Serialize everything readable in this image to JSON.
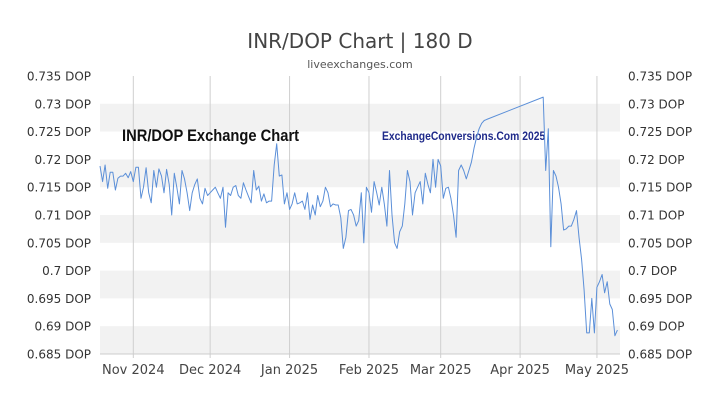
{
  "chart_data": {
    "type": "line",
    "title": "INR/DOP Chart | 180 D",
    "subtitle": "liveexchanges.com",
    "watermark_left": "INR/DOP Exchange Chart",
    "watermark_right": "ExchangeConversions.Com 2025",
    "y_unit": "DOP",
    "ylim": [
      0.685,
      0.735
    ],
    "y_ticks": [
      "0.735 DOP",
      "0.73 DOP",
      "0.725 DOP",
      "0.72 DOP",
      "0.715 DOP",
      "0.71 DOP",
      "0.705 DOP",
      "0.7 DOP",
      "0.695 DOP",
      "0.69 DOP",
      "0.685 DOP"
    ],
    "x_labels": [
      {
        "label": "Nov 2024",
        "day": 0
      },
      {
        "label": "Dec 2024",
        "day": 30
      },
      {
        "label": "Jan 2025",
        "day": 61
      },
      {
        "label": "Feb 2025",
        "day": 92
      },
      {
        "label": "Mar 2025",
        "day": 120
      },
      {
        "label": "Apr 2025",
        "day": 151
      },
      {
        "label": "May 2025",
        "day": 181
      }
    ],
    "x_range": [
      -13,
      190
    ],
    "grid": "horizontal bands + monthly vertical lines",
    "series": [
      {
        "color": "#5b8fd8",
        "points": [
          [
            -13,
            0.7188
          ],
          [
            -12,
            0.716
          ],
          [
            -11,
            0.719
          ],
          [
            -10,
            0.7148
          ],
          [
            -9,
            0.7177
          ],
          [
            -8,
            0.7177
          ],
          [
            -7,
            0.7145
          ],
          [
            -6,
            0.7166
          ],
          [
            -5,
            0.717
          ],
          [
            -4,
            0.717
          ],
          [
            -3,
            0.7175
          ],
          [
            -2,
            0.7167
          ],
          [
            -1,
            0.7178
          ],
          [
            0,
            0.716
          ],
          [
            1,
            0.7186
          ],
          [
            2,
            0.7186
          ],
          [
            3,
            0.713
          ],
          [
            4,
            0.715
          ],
          [
            5,
            0.7185
          ],
          [
            6,
            0.714
          ],
          [
            7,
            0.7122
          ],
          [
            8,
            0.718
          ],
          [
            9,
            0.715
          ],
          [
            10,
            0.7183
          ],
          [
            11,
            0.717
          ],
          [
            12,
            0.714
          ],
          [
            13,
            0.7182
          ],
          [
            14,
            0.7155
          ],
          [
            15,
            0.71
          ],
          [
            16,
            0.7175
          ],
          [
            17,
            0.715
          ],
          [
            18,
            0.712
          ],
          [
            19,
            0.718
          ],
          [
            20,
            0.7165
          ],
          [
            21,
            0.714
          ],
          [
            22,
            0.7108
          ],
          [
            23,
            0.714
          ],
          [
            24,
            0.7155
          ],
          [
            25,
            0.7165
          ],
          [
            26,
            0.713
          ],
          [
            27,
            0.712
          ],
          [
            28,
            0.7148
          ],
          [
            29,
            0.7135
          ],
          [
            30,
            0.714
          ],
          [
            31,
            0.7145
          ],
          [
            32,
            0.715
          ],
          [
            33,
            0.714
          ],
          [
            34,
            0.713
          ],
          [
            35,
            0.715
          ],
          [
            36,
            0.7078
          ],
          [
            37,
            0.714
          ],
          [
            38,
            0.7135
          ],
          [
            39,
            0.715
          ],
          [
            40,
            0.7153
          ],
          [
            41,
            0.7135
          ],
          [
            42,
            0.713
          ],
          [
            43,
            0.7158
          ],
          [
            44,
            0.7145
          ],
          [
            45,
            0.7133
          ],
          [
            46,
            0.7122
          ],
          [
            47,
            0.718
          ],
          [
            48,
            0.7145
          ],
          [
            49,
            0.7152
          ],
          [
            50,
            0.7125
          ],
          [
            51,
            0.7138
          ],
          [
            52,
            0.7122
          ],
          [
            53,
            0.7125
          ],
          [
            54,
            0.7125
          ],
          [
            55,
            0.719
          ],
          [
            56,
            0.7228
          ],
          [
            57,
            0.717
          ],
          [
            58,
            0.7172
          ],
          [
            59,
            0.712
          ],
          [
            60,
            0.714
          ],
          [
            61,
            0.711
          ],
          [
            62,
            0.712
          ],
          [
            63,
            0.714
          ],
          [
            64,
            0.712
          ],
          [
            65,
            0.7122
          ],
          [
            66,
            0.7125
          ],
          [
            67,
            0.711
          ],
          [
            68,
            0.714
          ],
          [
            69,
            0.7092
          ],
          [
            70,
            0.7118
          ],
          [
            71,
            0.71
          ],
          [
            72,
            0.7135
          ],
          [
            73,
            0.7115
          ],
          [
            74,
            0.7125
          ],
          [
            75,
            0.715
          ],
          [
            76,
            0.714
          ],
          [
            77,
            0.7115
          ],
          [
            78,
            0.712
          ],
          [
            79,
            0.7118
          ],
          [
            80,
            0.7118
          ],
          [
            81,
            0.7095
          ],
          [
            82,
            0.704
          ],
          [
            83,
            0.706
          ],
          [
            84,
            0.7108
          ],
          [
            85,
            0.711
          ],
          [
            86,
            0.71
          ],
          [
            87,
            0.708
          ],
          [
            88,
            0.709
          ],
          [
            89,
            0.714
          ],
          [
            90,
            0.705
          ],
          [
            91,
            0.715
          ],
          [
            92,
            0.714
          ],
          [
            93,
            0.7105
          ],
          [
            94,
            0.716
          ],
          [
            95,
            0.714
          ],
          [
            96,
            0.7118
          ],
          [
            97,
            0.715
          ],
          [
            98,
            0.712
          ],
          [
            99,
            0.708
          ],
          [
            100,
            0.718
          ],
          [
            101,
            0.71
          ],
          [
            102,
            0.705
          ],
          [
            103,
            0.704
          ],
          [
            104,
            0.707
          ],
          [
            105,
            0.708
          ],
          [
            106,
            0.712
          ],
          [
            107,
            0.718
          ],
          [
            108,
            0.716
          ],
          [
            109,
            0.71
          ],
          [
            110,
            0.714
          ],
          [
            111,
            0.715
          ],
          [
            112,
            0.716
          ],
          [
            113,
            0.712
          ],
          [
            114,
            0.7175
          ],
          [
            115,
            0.7155
          ],
          [
            116,
            0.714
          ],
          [
            117,
            0.72
          ],
          [
            118,
            0.715
          ],
          [
            119,
            0.72
          ],
          [
            120,
            0.7188
          ],
          [
            121,
            0.713
          ],
          [
            122,
            0.7148
          ],
          [
            123,
            0.715
          ],
          [
            124,
            0.713
          ],
          [
            125,
            0.71
          ],
          [
            126,
            0.706
          ],
          [
            127,
            0.718
          ],
          [
            128,
            0.719
          ],
          [
            129,
            0.718
          ],
          [
            130,
            0.7165
          ],
          [
            131,
            0.718
          ],
          [
            132,
            0.7195
          ],
          [
            133,
            0.722
          ],
          [
            134,
            0.724
          ],
          [
            135,
            0.7255
          ],
          [
            136,
            0.7265
          ],
          [
            137,
            0.727
          ],
          [
            138,
            0.7272
          ],
          [
            160,
            0.7312
          ],
          [
            161,
            0.718
          ],
          [
            162,
            0.7255
          ],
          [
            163,
            0.7043
          ],
          [
            164,
            0.718
          ],
          [
            165,
            0.717
          ],
          [
            166,
            0.715
          ],
          [
            167,
            0.712
          ],
          [
            168,
            0.7073
          ],
          [
            169,
            0.7075
          ],
          [
            170,
            0.708
          ],
          [
            171,
            0.708
          ],
          [
            172,
            0.7092
          ],
          [
            173,
            0.7108
          ],
          [
            174,
            0.706
          ],
          [
            175,
            0.702
          ],
          [
            176,
            0.6965
          ],
          [
            177,
            0.6888
          ],
          [
            178,
            0.6888
          ],
          [
            179,
            0.695
          ],
          [
            180,
            0.6888
          ],
          [
            181,
            0.697
          ],
          [
            182,
            0.698
          ],
          [
            183,
            0.6993
          ],
          [
            184,
            0.696
          ],
          [
            185,
            0.698
          ],
          [
            186,
            0.694
          ],
          [
            187,
            0.693
          ],
          [
            188,
            0.6883
          ],
          [
            189,
            0.6893
          ]
        ]
      }
    ]
  }
}
